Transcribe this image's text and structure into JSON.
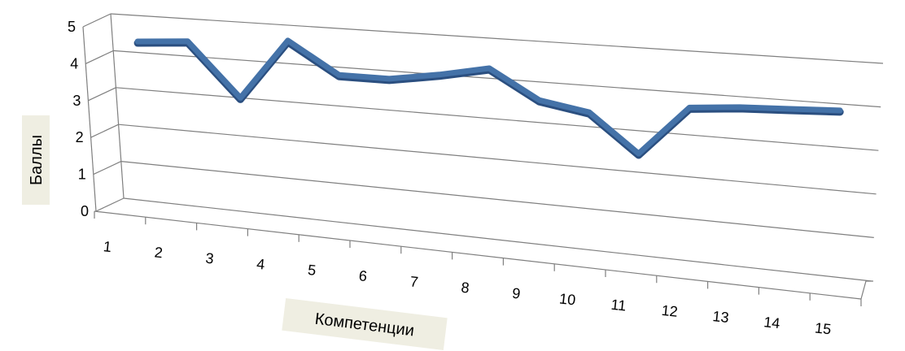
{
  "chart_data": {
    "type": "line",
    "title": "",
    "xlabel": "Компетенции",
    "ylabel": "Баллы",
    "categories": [
      "1",
      "2",
      "3",
      "4",
      "5",
      "6",
      "7",
      "8",
      "9",
      "10",
      "11",
      "12",
      "13",
      "14",
      "15"
    ],
    "y_ticks": [
      "0",
      "1",
      "2",
      "3",
      "4",
      "5"
    ],
    "ylim": [
      0,
      5
    ],
    "grid": true,
    "legend": "none",
    "series": [
      {
        "values": [
          4.3,
          4.4,
          3.0,
          4.6,
          3.8,
          3.8,
          4.0,
          4.25,
          3.55,
          3.35,
          2.45,
          3.65,
          3.75,
          3.8,
          3.85
        ]
      }
    ]
  },
  "colors": {
    "line": "#4472a8",
    "line_dark": "#2b4f80",
    "grid": "#7f7f7f",
    "label_box": "#efeee2"
  }
}
